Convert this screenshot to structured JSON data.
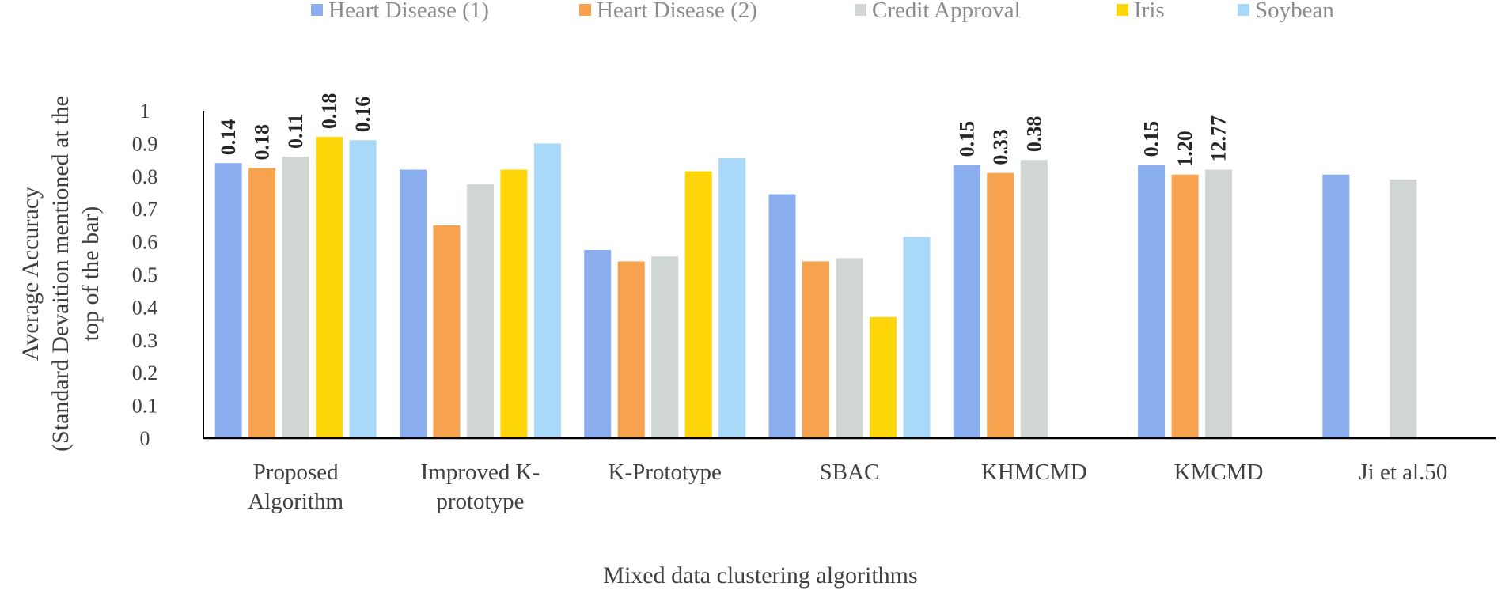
{
  "chart_data": {
    "type": "bar",
    "title": "",
    "xlabel": "Mixed data clustering algorithms",
    "ylabel": [
      "Average Accuracy",
      "(Standard Devaition mentioned at the",
      "top of the bar)"
    ],
    "ylim": [
      0,
      1
    ],
    "yticks": [
      "0",
      "0.1",
      "0.2",
      "0.3",
      "0.4",
      "0.5",
      "0.6",
      "0.7",
      "0.8",
      "0.9",
      "1"
    ],
    "grid": false,
    "legend_position": "top",
    "categories": [
      [
        "Proposed",
        "Algorithm"
      ],
      [
        "Improved K-",
        "prototype"
      ],
      [
        "K-Prototype"
      ],
      [
        "SBAC"
      ],
      [
        "KHMCMD"
      ],
      [
        "KMCMD"
      ],
      [
        "Ji et al.50"
      ]
    ],
    "series": [
      {
        "name": "Heart Disease (1)",
        "color": "#8aaef0",
        "values": [
          0.84,
          0.82,
          0.575,
          0.745,
          0.835,
          0.835,
          0.805
        ],
        "labels": [
          "0.14",
          "",
          "",
          "",
          "0.15",
          "0.15",
          ""
        ]
      },
      {
        "name": "Heart Disease (2)",
        "color": "#f7a24e",
        "values": [
          0.825,
          0.65,
          0.54,
          0.54,
          0.81,
          0.805,
          null
        ],
        "labels": [
          "0.18",
          "",
          "",
          "",
          "0.33",
          "1.20",
          ""
        ]
      },
      {
        "name": "Credit Approval",
        "color": "#cfd6d4",
        "values": [
          0.86,
          0.775,
          0.555,
          0.55,
          0.85,
          0.82,
          0.79
        ],
        "labels": [
          "0.11",
          "",
          "",
          "",
          "0.38",
          "12.77",
          ""
        ]
      },
      {
        "name": "Iris",
        "color": "#ffd60a",
        "values": [
          0.92,
          0.82,
          0.815,
          0.37,
          null,
          null,
          null
        ],
        "labels": [
          "0.18",
          "",
          "",
          "",
          "",
          "",
          ""
        ]
      },
      {
        "name": "Soybean",
        "color": "#a9d9f9",
        "values": [
          0.91,
          0.9,
          0.855,
          0.615,
          null,
          null,
          null
        ],
        "labels": [
          "0.16",
          "",
          "",
          "",
          "",
          "",
          ""
        ]
      }
    ]
  }
}
